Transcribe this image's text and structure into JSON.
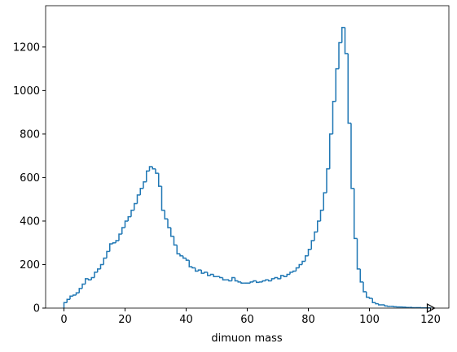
{
  "chart_data": {
    "type": "histogram",
    "x_label": "dimuon mass",
    "color": "#1f77b4",
    "bins": [
      0,
      1,
      2,
      3,
      4,
      5,
      6,
      7,
      8,
      9,
      10,
      11,
      12,
      13,
      14,
      15,
      16,
      17,
      18,
      19,
      20,
      21,
      22,
      23,
      24,
      25,
      26,
      27,
      28,
      29,
      30,
      31,
      32,
      33,
      34,
      35,
      36,
      37,
      38,
      39,
      40,
      41,
      42,
      43,
      44,
      45,
      46,
      47,
      48,
      49,
      50,
      51,
      52,
      53,
      54,
      55,
      56,
      57,
      58,
      59,
      60,
      61,
      62,
      63,
      64,
      65,
      66,
      67,
      68,
      69,
      70,
      71,
      72,
      73,
      74,
      75,
      76,
      77,
      78,
      79,
      80,
      81,
      82,
      83,
      84,
      85,
      86,
      87,
      88,
      89,
      90,
      91,
      92,
      93,
      94,
      95,
      96,
      97,
      98,
      99,
      100,
      101,
      102,
      103,
      104,
      105,
      106,
      107,
      108,
      109,
      110,
      111,
      112,
      113,
      114,
      115,
      116,
      117,
      118,
      119,
      120
    ],
    "counts": [
      25,
      40,
      55,
      60,
      70,
      90,
      110,
      135,
      130,
      140,
      165,
      180,
      200,
      230,
      260,
      295,
      300,
      310,
      340,
      370,
      400,
      420,
      450,
      480,
      520,
      550,
      580,
      630,
      650,
      640,
      620,
      560,
      450,
      410,
      370,
      330,
      290,
      250,
      240,
      230,
      220,
      190,
      185,
      170,
      175,
      160,
      165,
      150,
      155,
      145,
      145,
      140,
      130,
      130,
      125,
      140,
      125,
      120,
      115,
      115,
      115,
      120,
      125,
      118,
      120,
      125,
      130,
      125,
      135,
      140,
      135,
      150,
      145,
      155,
      165,
      170,
      185,
      200,
      215,
      240,
      270,
      310,
      350,
      400,
      450,
      530,
      640,
      800,
      950,
      1100,
      1220,
      1290,
      1170,
      850,
      550,
      320,
      180,
      120,
      75,
      50,
      45,
      25,
      20,
      15,
      15,
      10,
      8,
      8,
      6,
      5,
      5,
      4,
      3,
      3,
      2,
      2,
      2,
      1,
      1,
      1
    ],
    "xlim": [
      -6,
      126
    ],
    "ylim": [
      0,
      1390
    ],
    "xticks": [
      0,
      20,
      40,
      60,
      80,
      100,
      120
    ],
    "yticks": [
      0,
      200,
      400,
      600,
      800,
      1000,
      1200
    ]
  }
}
